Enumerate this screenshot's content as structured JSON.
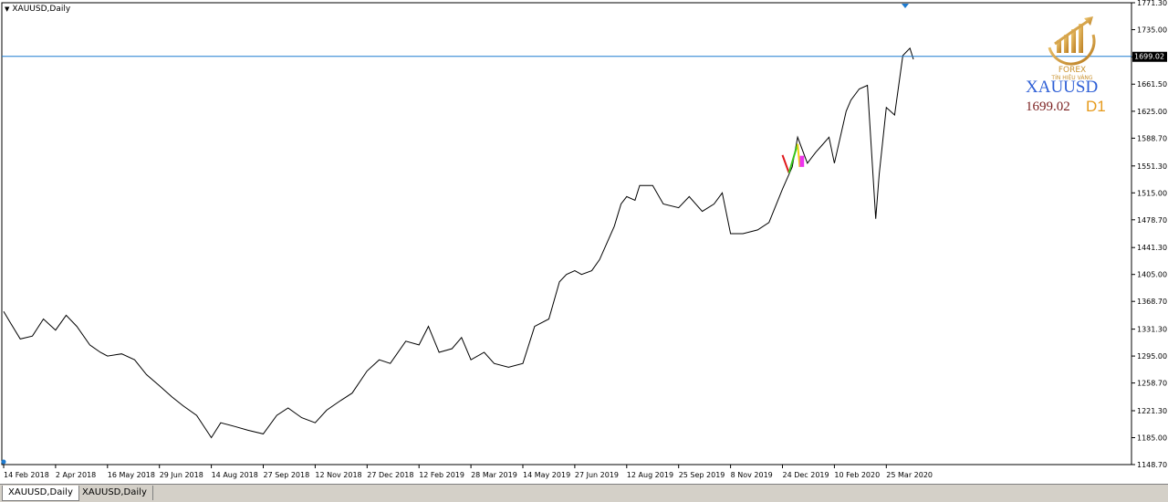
{
  "window": {
    "title": "XAUUSD,Daily"
  },
  "tabs": [
    {
      "label": "XAUUSD,Daily",
      "active": true
    },
    {
      "label": "XAUUSD,Daily",
      "active": false
    }
  ],
  "badge": {
    "symbol": "XAUUSD",
    "price": "1699.02",
    "timeframe": "D1",
    "logo_text": "FOREX",
    "logo_subtext": "TÍN HIỆU VÀNG"
  },
  "colors": {
    "price_line": "#000000",
    "bid_line": "#1e7bd0",
    "bid_tag_bg": "#000000",
    "axis": "#000000",
    "red_leg": "#e0191d",
    "green_leg": "#39c51d",
    "yellow_leg": "#f0d010",
    "magenta_box": "#ee33ee"
  },
  "chart_data": {
    "type": "line",
    "title": "XAUUSD,Daily",
    "xlabel": "",
    "ylabel": "",
    "ylim": [
      1148.7,
      1771.3
    ],
    "grid": false,
    "current_price": 1699.02,
    "current_price_label": "1699.02",
    "y_ticks": [
      "1771.30",
      "1735.00",
      "1698.40",
      "1661.50",
      "1625.00",
      "1588.70",
      "1551.30",
      "1515.00",
      "1478.70",
      "1441.30",
      "1405.00",
      "1368.70",
      "1331.30",
      "1295.00",
      "1258.70",
      "1221.30",
      "1185.00",
      "1148.70"
    ],
    "x_ticks": [
      "14 Feb 2018",
      "2 Apr 2018",
      "16 May 2018",
      "29 Jun 2018",
      "14 Aug 2018",
      "27 Sep 2018",
      "12 Nov 2018",
      "27 Dec 2018",
      "12 Feb 2019",
      "28 Mar 2019",
      "14 May 2019",
      "27 Jun 2019",
      "12 Aug 2019",
      "25 Sep 2019",
      "8 Nov 2019",
      "24 Dec 2019",
      "10 Feb 2020",
      "25 Mar 2020"
    ],
    "series": [
      {
        "x": [
          "14 Feb 2018",
          "20 Feb 2018",
          "1 Mar 2018",
          "12 Mar 2018",
          "22 Mar 2018",
          "2 Apr 2018",
          "11 Apr 2018",
          "20 Apr 2018",
          "1 May 2018",
          "10 May 2018",
          "16 May 2018",
          "28 May 2018",
          "8 Jun 2018",
          "18 Jun 2018",
          "29 Jun 2018",
          "10 Jul 2018",
          "20 Jul 2018",
          "1 Aug 2018",
          "14 Aug 2018",
          "22 Aug 2018",
          "3 Sep 2018",
          "14 Sep 2018",
          "27 Sep 2018",
          "9 Oct 2018",
          "19 Oct 2018",
          "31 Oct 2018",
          "12 Nov 2018",
          "22 Nov 2018",
          "4 Dec 2018",
          "14 Dec 2018",
          "27 Dec 2018",
          "7 Jan 2019",
          "17 Jan 2019",
          "31 Jan 2019",
          "12 Feb 2019",
          "20 Feb 2019",
          "1 Mar 2019",
          "12 Mar 2019",
          "20 Mar 2019",
          "28 Mar 2019",
          "9 Apr 2019",
          "18 Apr 2019",
          "1 May 2019",
          "14 May 2019",
          "24 May 2019",
          "5 Jun 2019",
          "14 Jun 2019",
          "20 Jun 2019",
          "27 Jun 2019",
          "3 Jul 2019",
          "12 Jul 2019",
          "19 Jul 2019",
          "1 Aug 2019",
          "7 Aug 2019",
          "12 Aug 2019",
          "19 Aug 2019",
          "23 Aug 2019",
          "3 Sep 2019",
          "12 Sep 2019",
          "25 Sep 2019",
          "4 Oct 2019",
          "15 Oct 2019",
          "25 Oct 2019",
          "1 Nov 2019",
          "8 Nov 2019",
          "19 Nov 2019",
          "2 Dec 2019",
          "12 Dec 2019",
          "24 Dec 2019",
          "2 Jan 2020",
          "7 Jan 2020",
          "16 Jan 2020",
          "24 Jan 2020",
          "30 Jan 2020",
          "5 Feb 2020",
          "10 Feb 2020",
          "20 Feb 2020",
          "24 Feb 2020",
          "2 Mar 2020",
          "9 Mar 2020",
          "16 Mar 2020",
          "19 Mar 2020",
          "25 Mar 2020",
          "1 Apr 2020",
          "8 Apr 2020",
          "14 Apr 2020",
          "17 Apr 2020"
        ],
        "values": [
          1355,
          1340,
          1318,
          1322,
          1345,
          1330,
          1350,
          1335,
          1310,
          1300,
          1295,
          1298,
          1290,
          1270,
          1255,
          1240,
          1228,
          1215,
          1185,
          1205,
          1200,
          1195,
          1190,
          1215,
          1225,
          1212,
          1205,
          1222,
          1235,
          1245,
          1275,
          1290,
          1285,
          1315,
          1310,
          1335,
          1300,
          1305,
          1320,
          1290,
          1300,
          1285,
          1280,
          1285,
          1335,
          1345,
          1395,
          1405,
          1410,
          1405,
          1410,
          1425,
          1470,
          1500,
          1510,
          1505,
          1525,
          1525,
          1500,
          1495,
          1510,
          1490,
          1500,
          1515,
          1460,
          1460,
          1465,
          1475,
          1520,
          1550,
          1590,
          1555,
          1570,
          1580,
          1590,
          1555,
          1625,
          1640,
          1655,
          1660,
          1480,
          1540,
          1630,
          1620,
          1700,
          1710,
          1695
        ]
      }
    ],
    "annotations": [
      {
        "type": "leg",
        "color": "red",
        "from": [
          "24 Dec 2019",
          1566
        ],
        "to": [
          "30 Dec 2019",
          1542
        ]
      },
      {
        "type": "leg",
        "color": "green",
        "from": [
          "30 Dec 2019",
          1542
        ],
        "to": [
          "7 Jan 2020",
          1581
        ]
      },
      {
        "type": "leg",
        "color": "yellow",
        "from": [
          "7 Jan 2020",
          1581
        ],
        "to": [
          "9 Jan 2020",
          1550
        ]
      },
      {
        "type": "box",
        "color": "magenta",
        "from": [
          "9 Jan 2020",
          1550
        ],
        "to": [
          "13 Jan 2020",
          1565
        ]
      }
    ]
  }
}
